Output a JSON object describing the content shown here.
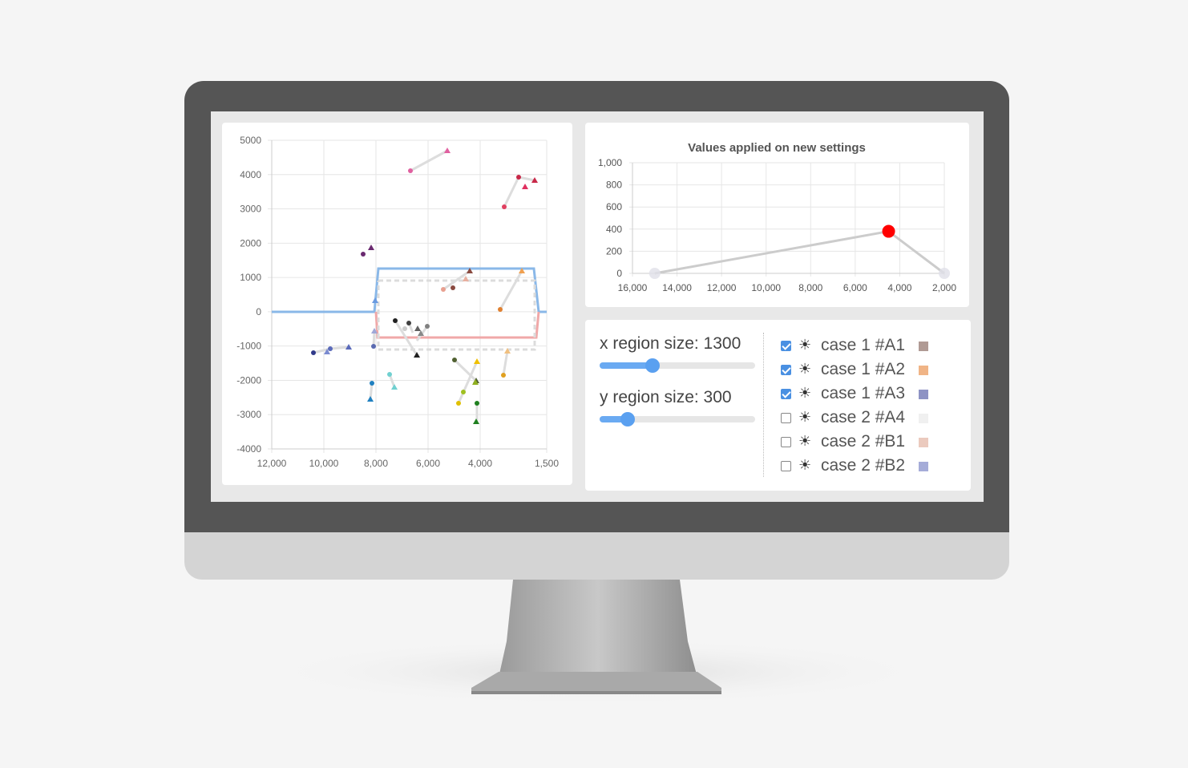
{
  "scatter_chart": {
    "y_ticks": [
      "5000",
      "4000",
      "3000",
      "2000",
      "1000",
      "0",
      "-1000",
      "-2000",
      "-3000",
      "-4000"
    ],
    "x_ticks": [
      "12,000",
      "10,000",
      "8,000",
      "6,000",
      "4,000",
      "1,500"
    ]
  },
  "chart_data": {
    "type": "line",
    "title": "Values applied on new settings",
    "x": [
      15000,
      4500,
      2000
    ],
    "y": [
      0,
      380,
      0
    ],
    "highlight_index": 1,
    "x_ticks": [
      "16,000",
      "14,000",
      "12,000",
      "10,000",
      "8,000",
      "6,000",
      "4,000",
      "2,000"
    ],
    "y_ticks": [
      "1,000",
      "800",
      "600",
      "400",
      "200",
      "0"
    ],
    "xlim": [
      16000,
      2000
    ],
    "ylim": [
      0,
      1000
    ],
    "colors": {
      "line": "#cccccc",
      "highlight": "#ff0000"
    }
  },
  "controls": {
    "x_region_label": "x region size: 1300",
    "x_region_fraction": 0.34,
    "y_region_label": "y region size: 300",
    "y_region_fraction": 0.18,
    "cases": [
      {
        "label": "case 1 #A1",
        "checked": true,
        "color": "#b09a94"
      },
      {
        "label": "case 1 #A2",
        "checked": true,
        "color": "#f0b486"
      },
      {
        "label": "case 1 #A3",
        "checked": true,
        "color": "#8e93c4"
      },
      {
        "label": "case 2 #A4",
        "checked": false,
        "color": "#f0f0f0"
      },
      {
        "label": "case 2 #B1",
        "checked": false,
        "color": "#ebcabe"
      },
      {
        "label": "case 2 #B2",
        "checked": false,
        "color": "#a5acd8"
      }
    ]
  }
}
